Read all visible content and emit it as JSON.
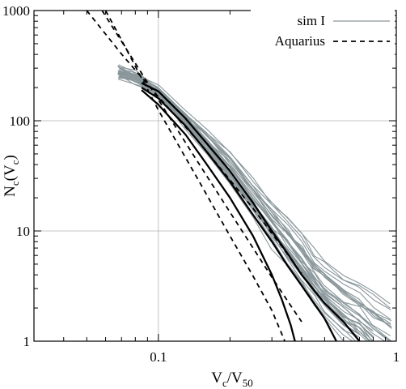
{
  "chart_data": {
    "type": "line",
    "xlabel": {
      "main": "V",
      "sub1": "c",
      "mid": "/V",
      "sub2": "50"
    },
    "ylabel": {
      "main": "N",
      "sub1": "c",
      "mid": "(V",
      "sub2": "c",
      "end": ")"
    },
    "x_scale": "log",
    "y_scale": "log",
    "xlim": [
      0.03,
      1
    ],
    "ylim": [
      1,
      1000
    ],
    "x_ticks": [
      {
        "value": 0.1,
        "label": "0.1"
      },
      {
        "value": 1,
        "label": "1"
      }
    ],
    "y_ticks": [
      {
        "value": 1,
        "label": "1"
      },
      {
        "value": 10,
        "label": "10"
      },
      {
        "value": 100,
        "label": "100"
      },
      {
        "value": 1000,
        "label": "1000"
      }
    ],
    "grid": true,
    "legend_position": "top-right",
    "colors": {
      "sim": "#8a979b",
      "sim_median": "#000000",
      "aquarius": "#000000",
      "grid": "#b5b5b5"
    },
    "series": [
      {
        "name": "sim I",
        "style": "solid",
        "color": "#8a979b",
        "representative": true,
        "x": [
          0.068,
          0.08,
          0.1,
          0.13,
          0.16,
          0.2,
          0.25,
          0.3,
          0.35,
          0.4,
          0.45,
          0.5,
          0.6,
          0.7,
          0.8,
          0.95
        ],
        "y": [
          280,
          250,
          185,
          105,
          64,
          38,
          20,
          12,
          8,
          5.5,
          3.8,
          3.0,
          2.1,
          1.7,
          1.3,
          1.0
        ]
      },
      {
        "name": "",
        "style": "solid",
        "color": "#000000",
        "x": [
          0.085,
          0.1,
          0.13,
          0.16,
          0.2,
          0.25,
          0.3,
          0.35,
          0.4,
          0.5,
          0.6,
          0.7
        ],
        "y": [
          220,
          185,
          105,
          62,
          35,
          18,
          10,
          6.2,
          4,
          2.2,
          1.5,
          1.0
        ]
      },
      {
        "name": "",
        "style": "solid",
        "color": "#000000",
        "x": [
          0.085,
          0.1,
          0.13,
          0.16,
          0.2,
          0.25,
          0.3,
          0.35,
          0.4,
          0.5,
          0.56
        ],
        "y": [
          200,
          160,
          90,
          52,
          28,
          14,
          8,
          4.8,
          3.2,
          1.6,
          1.0
        ]
      },
      {
        "name": "",
        "style": "solid",
        "color": "#000000",
        "x": [
          0.085,
          0.1,
          0.13,
          0.16,
          0.2,
          0.25,
          0.3,
          0.33,
          0.36,
          0.375
        ],
        "y": [
          190,
          140,
          75,
          40,
          20,
          9,
          4,
          2.4,
          1.4,
          1.0
        ]
      },
      {
        "name": "Aquarius",
        "style": "dashed",
        "color": "#000000",
        "x": [
          0.05,
          0.07,
          0.1,
          0.15,
          0.2,
          0.25,
          0.3,
          0.35,
          0.4
        ],
        "y": [
          1000,
          403,
          165,
          62,
          29,
          16,
          9.5,
          6.1,
          4.1
        ]
      },
      {
        "name": "",
        "style": "dashed",
        "color": "#000000",
        "x": [
          0.058,
          0.07,
          0.1,
          0.15,
          0.2,
          0.25,
          0.3,
          0.35,
          0.4
        ],
        "y": [
          1000,
          525,
          155,
          39,
          14.8,
          7.0,
          3.8,
          2.3,
          1.5
        ]
      },
      {
        "name": "",
        "style": "dashed",
        "color": "#000000",
        "x": [
          0.06,
          0.07,
          0.1,
          0.15,
          0.2,
          0.25,
          0.3,
          0.34
        ],
        "y": [
          1000,
          540,
          125,
          27,
          9.0,
          3.9,
          1.9,
          1.0
        ]
      }
    ],
    "legend": [
      {
        "label": "sim I",
        "style": "solid",
        "color": "#8a979b"
      },
      {
        "label": "Aquarius",
        "style": "dashed",
        "color": "#000000"
      }
    ]
  }
}
